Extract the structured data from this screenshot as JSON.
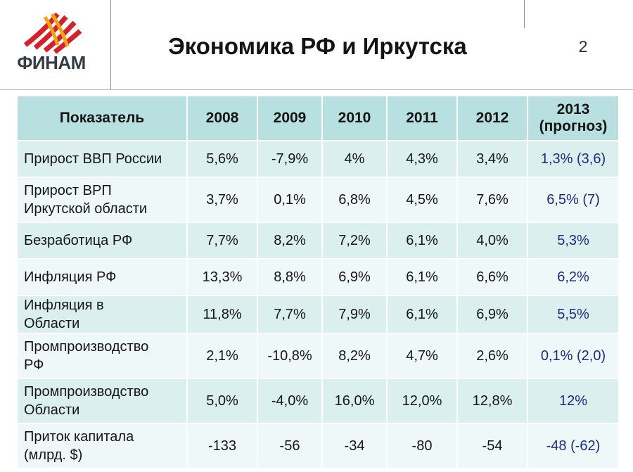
{
  "header": {
    "logo_text": "ФИНАМ",
    "title": "Экономика РФ и Иркутска",
    "page_number": "2"
  },
  "table": {
    "columns": [
      "Показатель",
      "2008",
      "2009",
      "2010",
      "2011",
      "2012",
      "2013 (прогноз)"
    ],
    "forecast_column_label": [
      "2013",
      "(прогноз)"
    ],
    "rows": [
      {
        "name": [
          "Прирост ВВП России"
        ],
        "values": [
          "5,6%",
          "-7,9%",
          "4%",
          "4,3%",
          "3,4%",
          "1,3% (3,6)"
        ]
      },
      {
        "name": [
          "Прирост ВРП",
          "Иркутской области"
        ],
        "values": [
          "3,7%",
          "0,1%",
          "6,8%",
          "4,5%",
          "7,6%",
          "6,5% (7)"
        ]
      },
      {
        "name": [
          "Безработица РФ"
        ],
        "values": [
          "7,7%",
          "8,2%",
          "7,2%",
          "6,1%",
          "4,0%",
          "5,3%"
        ]
      },
      {
        "name": [
          "Инфляция РФ"
        ],
        "values": [
          "13,3%",
          "8,8%",
          "6,9%",
          "6,1%",
          "6,6%",
          "6,2%"
        ]
      },
      {
        "name": [
          "Инфляция в",
          "Области"
        ],
        "values": [
          "11,8%",
          "7,7%",
          "7,9%",
          "6,1%",
          "6,9%",
          "5,5%"
        ]
      },
      {
        "name": [
          "Промпроизводство",
          "РФ"
        ],
        "values": [
          "2,1%",
          "-10,8%",
          "8,2%",
          "4,7%",
          "2,6%",
          "0,1% (2,0)"
        ]
      },
      {
        "name": [
          "Промпроизводство",
          "Области"
        ],
        "values": [
          "5,0%",
          "-4,0%",
          "16,0%",
          "12,0%",
          "12,8%",
          "12%"
        ]
      },
      {
        "name": [
          "Приток капитала",
          "(млрд. $)"
        ],
        "values": [
          "-133",
          "-56",
          "-34",
          "-80",
          "-54",
          "-48 (-62)"
        ]
      }
    ]
  },
  "colors": {
    "header_row": "#b9e0e0",
    "row_odd": "#dcefef",
    "row_even": "#eff8f8",
    "forecast_text": "#1b2d7a",
    "logo_red": "#d2232a",
    "logo_orange": "#f2a51b"
  }
}
